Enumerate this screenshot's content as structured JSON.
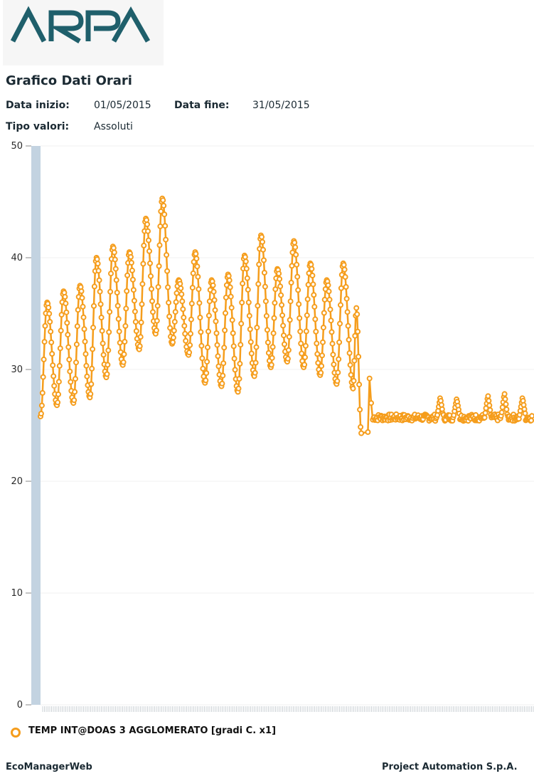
{
  "header": {
    "logo_text": "ARPA",
    "title": "Grafico Dati Orari",
    "start_label": "Data inizio:",
    "start_value": "01/05/2015",
    "end_label": "Data fine:",
    "end_value": "31/05/2015",
    "type_label": "Tipo valori:",
    "type_value": "Assoluti"
  },
  "colors": {
    "series": "#f59d1c",
    "axis_bar": "#c3d3e1",
    "grid": "#f1f1f1",
    "logo": "#1f5f6b"
  },
  "chart_data": {
    "type": "line",
    "ylim": [
      0,
      50
    ],
    "yticks": [
      "0",
      "10",
      "20",
      "30",
      "40",
      "50"
    ],
    "grid": true,
    "legend_position": "bottom-left",
    "series": [
      {
        "name": "TEMP INT@DOAS 3 AGGLOMERATO [gradi C. x1]",
        "x_unit": "day of month (May 2015)",
        "peaks": [
          {
            "x": 1.4,
            "y": 36.0
          },
          {
            "x": 2.4,
            "y": 37.0
          },
          {
            "x": 3.4,
            "y": 37.5
          },
          {
            "x": 4.4,
            "y": 40.0
          },
          {
            "x": 5.4,
            "y": 41.0
          },
          {
            "x": 6.4,
            "y": 40.5
          },
          {
            "x": 7.4,
            "y": 43.5
          },
          {
            "x": 8.4,
            "y": 45.3
          },
          {
            "x": 9.4,
            "y": 38.0
          },
          {
            "x": 10.4,
            "y": 40.5
          },
          {
            "x": 11.4,
            "y": 38.0
          },
          {
            "x": 12.4,
            "y": 38.5
          },
          {
            "x": 13.4,
            "y": 40.2
          },
          {
            "x": 14.4,
            "y": 42.0
          },
          {
            "x": 15.4,
            "y": 39.0
          },
          {
            "x": 16.4,
            "y": 41.5
          },
          {
            "x": 17.4,
            "y": 39.5
          },
          {
            "x": 18.4,
            "y": 38.0
          },
          {
            "x": 19.4,
            "y": 39.5
          },
          {
            "x": 20.2,
            "y": 35.5
          }
        ],
        "troughs": [
          {
            "x": 1.0,
            "y": 25.8
          },
          {
            "x": 2.0,
            "y": 26.8
          },
          {
            "x": 3.0,
            "y": 27.0
          },
          {
            "x": 4.0,
            "y": 27.5
          },
          {
            "x": 5.0,
            "y": 29.3
          },
          {
            "x": 6.0,
            "y": 30.4
          },
          {
            "x": 7.0,
            "y": 31.8
          },
          {
            "x": 8.0,
            "y": 33.2
          },
          {
            "x": 9.0,
            "y": 32.3
          },
          {
            "x": 10.0,
            "y": 31.3
          },
          {
            "x": 11.0,
            "y": 28.8
          },
          {
            "x": 12.0,
            "y": 28.5
          },
          {
            "x": 13.0,
            "y": 28.0
          },
          {
            "x": 14.0,
            "y": 29.4
          },
          {
            "x": 15.0,
            "y": 30.2
          },
          {
            "x": 16.0,
            "y": 30.7
          },
          {
            "x": 17.0,
            "y": 30.2
          },
          {
            "x": 18.0,
            "y": 29.5
          },
          {
            "x": 19.0,
            "y": 28.7
          },
          {
            "x": 20.0,
            "y": 28.3
          },
          {
            "x": 20.5,
            "y": 24.3
          }
        ],
        "flat_level": 25.7,
        "flat_spikes": [
          {
            "x": 25.3,
            "y": 27.5
          },
          {
            "x": 26.3,
            "y": 27.4
          },
          {
            "x": 28.2,
            "y": 27.7
          },
          {
            "x": 29.2,
            "y": 27.9
          },
          {
            "x": 30.3,
            "y": 27.5
          }
        ]
      }
    ]
  },
  "footer": {
    "left": "EcoManagerWeb",
    "right": "Project Automation S.p.A."
  }
}
